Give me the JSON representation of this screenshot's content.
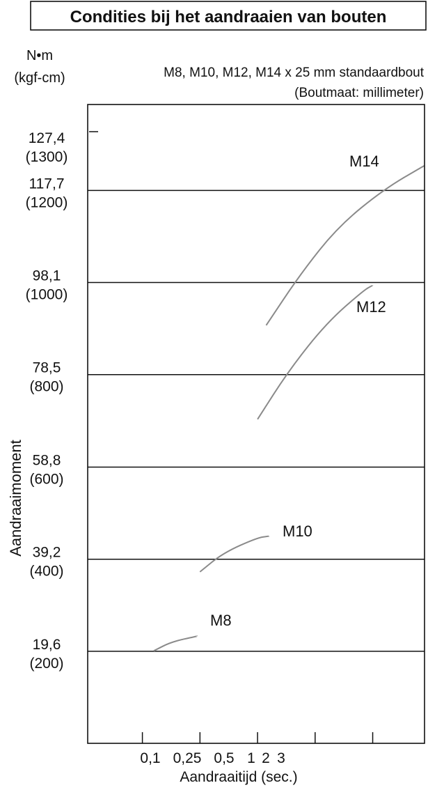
{
  "chart_data": {
    "type": "line",
    "title": "Condities bij het aandraaien van bouten",
    "subtitle": "M8, M10, M12, M14 x 25 mm standaardbout",
    "subtitle_note": "(Boutmaat: millimeter)",
    "ylabel": "Aandraaimoment",
    "y_unit_top": "N•m",
    "y_unit_bottom": "(kgf-cm)",
    "xlabel": "Aandraaitijd (sec.)",
    "x_ticks": [
      "0,1",
      "0,25",
      "0,5",
      "1",
      "2",
      "3"
    ],
    "y_ticks": [
      {
        "nm": 127.4,
        "label": "127,4",
        "kgf": "(1300)"
      },
      {
        "nm": 117.7,
        "label": "117,7",
        "kgf": "(1200)"
      },
      {
        "nm": 98.1,
        "label": "98,1",
        "kgf": "(1000)"
      },
      {
        "nm": 78.5,
        "label": "78,5",
        "kgf": "(800)"
      },
      {
        "nm": 58.8,
        "label": "58,8",
        "kgf": "(600)"
      },
      {
        "nm": 39.2,
        "label": "39,2",
        "kgf": "(400)"
      },
      {
        "nm": 19.6,
        "label": "19,6",
        "kgf": "(200)"
      }
    ],
    "gridlines_nm": [
      117.7,
      98.1,
      78.5,
      58.8,
      39.2,
      19.6
    ],
    "ylim": [
      0,
      136
    ],
    "xlim_index": [
      -0.95,
      4.9
    ],
    "series_color": "#8a8a8a",
    "series": [
      {
        "name": "M8",
        "points": [
          [
            0.2,
            19.7
          ],
          [
            0.5,
            21.6
          ],
          [
            0.95,
            22.8
          ]
        ]
      },
      {
        "name": "M10",
        "points": [
          [
            1.0,
            36.5
          ],
          [
            1.4,
            40.5
          ],
          [
            2.0,
            43.8
          ],
          [
            2.2,
            44.1
          ]
        ]
      },
      {
        "name": "M12",
        "points": [
          [
            2.0,
            69.0
          ],
          [
            2.55,
            79.5
          ],
          [
            3.2,
            89.5
          ],
          [
            3.85,
            96.5
          ],
          [
            4.0,
            97.5
          ]
        ]
      },
      {
        "name": "M14",
        "points": [
          [
            2.15,
            89.0
          ],
          [
            2.75,
            100.0
          ],
          [
            3.4,
            110.0
          ],
          [
            4.2,
            118.0
          ],
          [
            4.9,
            123.0
          ]
        ]
      }
    ]
  }
}
